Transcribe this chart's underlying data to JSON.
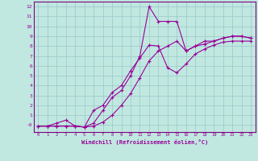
{
  "xlabel": "Windchill (Refroidissement éolien,°C)",
  "bg_color": "#c0e8e0",
  "grid_color": "#a0cccc",
  "line_color": "#990099",
  "spine_color": "#800080",
  "xlim": [
    -0.5,
    23.5
  ],
  "ylim": [
    -0.7,
    12.5
  ],
  "xticks": [
    0,
    1,
    2,
    3,
    4,
    5,
    6,
    7,
    8,
    9,
    10,
    11,
    12,
    13,
    14,
    15,
    16,
    17,
    18,
    19,
    20,
    21,
    22,
    23
  ],
  "yticks": [
    0,
    1,
    2,
    3,
    4,
    5,
    6,
    7,
    8,
    9,
    10,
    11,
    12
  ],
  "ytick_labels": [
    "-0",
    "1",
    "2",
    "3",
    "4",
    "5",
    "6",
    "7",
    "8",
    "9",
    "10",
    "11",
    "12"
  ],
  "series1_x": [
    0,
    1,
    2,
    3,
    4,
    5,
    6,
    7,
    8,
    9,
    10,
    11,
    12,
    13,
    14,
    15,
    16,
    17,
    18,
    19,
    20,
    21,
    22,
    23
  ],
  "series1_y": [
    -0.1,
    -0.1,
    0.2,
    0.5,
    -0.1,
    -0.2,
    1.5,
    2.0,
    3.3,
    4.0,
    5.5,
    6.8,
    8.1,
    8.0,
    5.8,
    5.3,
    6.2,
    7.2,
    7.7,
    8.1,
    8.4,
    8.5,
    8.5,
    8.5
  ],
  "series2_x": [
    0,
    1,
    2,
    3,
    4,
    5,
    6,
    7,
    8,
    9,
    10,
    11,
    12,
    13,
    14,
    15,
    16,
    17,
    18,
    19,
    20,
    21,
    22,
    23
  ],
  "series2_y": [
    -0.1,
    -0.1,
    -0.1,
    -0.1,
    -0.1,
    -0.2,
    0.2,
    1.5,
    2.8,
    3.5,
    5.0,
    7.0,
    12.0,
    10.5,
    10.5,
    10.5,
    7.5,
    8.0,
    8.5,
    8.5,
    8.8,
    9.0,
    9.0,
    8.8
  ],
  "series3_x": [
    0,
    1,
    2,
    3,
    4,
    5,
    6,
    7,
    8,
    9,
    10,
    11,
    12,
    13,
    14,
    15,
    16,
    17,
    18,
    19,
    20,
    21,
    22,
    23
  ],
  "series3_y": [
    -0.1,
    -0.1,
    -0.1,
    -0.1,
    -0.1,
    -0.2,
    -0.1,
    0.3,
    1.0,
    2.0,
    3.2,
    4.8,
    6.5,
    7.5,
    8.0,
    8.5,
    7.5,
    8.0,
    8.2,
    8.5,
    8.8,
    9.0,
    9.0,
    8.8
  ]
}
